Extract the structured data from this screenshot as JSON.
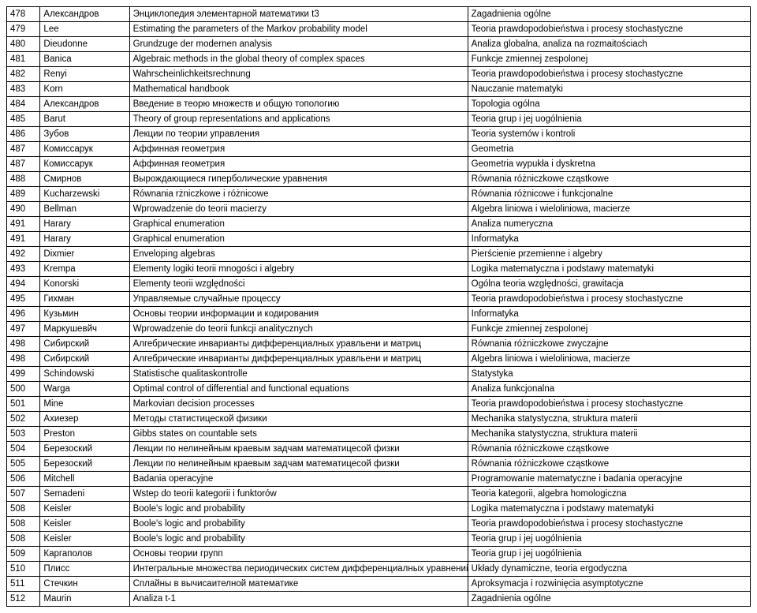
{
  "columns": [
    {
      "class": "c0"
    },
    {
      "class": "c1"
    },
    {
      "class": "c2"
    },
    {
      "class": "c3"
    }
  ],
  "rows": [
    [
      "478",
      "Александров",
      "Энциклопедия элементарной математики t3",
      "Zagadnienia ogólne"
    ],
    [
      "479",
      "Lee",
      "Estimating the parameters of the Markov probability model",
      "Teoria prawdopodobieństwa i procesy stochastyczne"
    ],
    [
      "480",
      "Dieudonne",
      "Grundzuge der modernen analysis",
      "Analiza globalna, analiza na rozmaitościach"
    ],
    [
      "481",
      "Banica",
      "Algebraic methods in the global theory of complex spaces",
      "Funkcje zmiennej zespolonej"
    ],
    [
      "482",
      "Renyi",
      "Wahrscheinlichkeitsrechnung",
      "Teoria prawdopodobieństwa i procesy stochastyczne"
    ],
    [
      "483",
      "Korn",
      "Mathematical handbook",
      "Nauczanie matematyki"
    ],
    [
      "484",
      "Александров",
      "Введение в теорю множеств и общую топологию",
      "Topologia ogólna"
    ],
    [
      "485",
      "Barut",
      "Theory of group representations and applications",
      "Teoria grup i jej uogólnienia"
    ],
    [
      "486",
      "Зубов",
      "Лекции по теории управления",
      "Teoria systemów i kontroli"
    ],
    [
      "487",
      "Комиссарук",
      "Аффинная геометрия",
      "Geometria"
    ],
    [
      "487",
      "Комиссарук",
      "Аффинная геометрия",
      "Geometria wypukła i dyskretna"
    ],
    [
      "488",
      "Смирнов",
      "Вырождающиеся гиперболические уравнения",
      "Równania różniczkowe cząstkowe"
    ],
    [
      "489",
      "Kucharzewski",
      "Równania rżniczkowe i różnicowe",
      "Równania różnicowe i funkcjonalne"
    ],
    [
      "490",
      "Bellman",
      "Wprowadzenie do teorii macierzy",
      "Algebra liniowa i wieloliniowa, macierze"
    ],
    [
      "491",
      "Harary",
      "Graphical enumeration",
      "Analiza numeryczna"
    ],
    [
      "491",
      "Harary",
      "Graphical enumeration",
      "Informatyka"
    ],
    [
      "492",
      "Dixmier",
      "Enveloping algebras",
      "Pierścienie przemienne i algebry"
    ],
    [
      "493",
      "Krempa",
      "Elementy logiki teorii mnogości i algebry",
      "Logika matematyczna i podstawy matematyki"
    ],
    [
      "494",
      "Konorski",
      "Elementy teorii względności",
      "Ogólna teoria względności, grawitacja"
    ],
    [
      "495",
      "Гихман",
      "Управляемые случайные процессу",
      "Teoria prawdopodobieństwa i procesy stochastyczne"
    ],
    [
      "496",
      "Кузьмин",
      "Основы теории информации и кодирования",
      "Informatyka"
    ],
    [
      "497",
      "Маркушевйч",
      "Wprowadzenie do teorii funkcji analitycznych",
      "Funkcje zmiennej zespolonej"
    ],
    [
      "498",
      "Сибирский",
      "Алгебрические инварианты дифференциалных уравльени и матриц",
      "Równania różniczkowe zwyczajne"
    ],
    [
      "498",
      "Сибирский",
      "Алгебрические инварианты дифференциалных уравльени и матриц",
      "Algebra liniowa i wieloliniowa, macierze"
    ],
    [
      "499",
      "Schindowski",
      "Statistische qualitaskontrolle",
      "Statystyka"
    ],
    [
      "500",
      "Warga",
      "Optimal control of differential and functional equations",
      "Analiza funkcjonalna"
    ],
    [
      "501",
      "Mine",
      "Markovian decision processes",
      "Teoria prawdopodobieństwa i procesy stochastyczne"
    ],
    [
      "502",
      "Ахиезер",
      "Методы статистицеской физики",
      "Mechanika statystyczna, struktura materii"
    ],
    [
      "503",
      "Preston",
      "Gibbs states on countable sets",
      "Mechanika statystyczna, struktura materii"
    ],
    [
      "504",
      "Березоский",
      "Лекции по нелинейным краевым задчам математицесой физки",
      "Równania różniczkowe cząstkowe"
    ],
    [
      "505",
      "Березоский",
      "Лекции по нелинейным краевым задчам математицесой физки",
      "Równania różniczkowe cząstkowe"
    ],
    [
      "506",
      "Mitchell",
      "Badania operacyjne",
      "Programowanie matematyczne i badania operacyjne"
    ],
    [
      "507",
      "Semadeni",
      "Wstep do teorii kategorii i funktorów",
      "Teoria kategorii, algebra homologiczna"
    ],
    [
      "508",
      "Keisler",
      "Boole's logic and probability",
      "Logika matematyczna i podstawy matematyki"
    ],
    [
      "508",
      "Keisler",
      "Boole's logic and probability",
      "Teoria prawdopodobieństwa i procesy stochastyczne"
    ],
    [
      "508",
      "Keisler",
      "Boole's logic and probability",
      "Teoria grup i jej uogólnienia"
    ],
    [
      "509",
      "Каргаполов",
      "Основы теории групп",
      "Teoria grup i jej uogólnienia"
    ],
    [
      "510",
      "Плисс",
      "Интегральные множества периодических систем дифференциалных уравнений",
      "Układy dynamiczne, teoria ergodyczna"
    ],
    [
      "511",
      "Стечкин",
      "Сплайны в вычисаителной математике",
      "Aproksymacja i rozwinięcia asymptotyczne"
    ],
    [
      "512",
      "Maurin",
      "Analiza t-1",
      "Zagadnienia ogólne"
    ]
  ]
}
